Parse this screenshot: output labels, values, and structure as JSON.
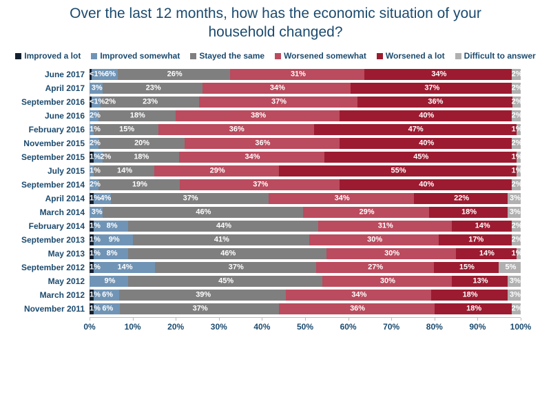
{
  "chart_data": {
    "type": "bar",
    "orientation": "horizontal-stacked",
    "title": "Over the last 12 months, how has the economic situation of your household changed?",
    "legend_position": "top",
    "grid": false,
    "x_axis": {
      "min": 0,
      "max": 100,
      "ticks": [
        "0%",
        "10%",
        "20%",
        "30%",
        "40%",
        "50%",
        "60%",
        "70%",
        "80%",
        "90%",
        "100%"
      ]
    },
    "series_meta": [
      {
        "key": "improved_a_lot",
        "label": "Improved a lot",
        "color": "#13202f"
      },
      {
        "key": "improved_somewhat",
        "label": "Improved somewhat",
        "color": "#7094b5"
      },
      {
        "key": "stayed_the_same",
        "label": "Stayed the same",
        "color": "#7f7f7f"
      },
      {
        "key": "worsened_somewhat",
        "label": "Worsened somewhat",
        "color": "#bb4b5e"
      },
      {
        "key": "worsened_a_lot",
        "label": "Worsened a lot",
        "color": "#9c1b30"
      },
      {
        "key": "difficult_to_answer",
        "label": "Difficult to answer",
        "color": "#b0b0b0"
      }
    ],
    "rows": [
      {
        "category": "June 2017",
        "segments": [
          {
            "series": "improved_a_lot",
            "value": 0.5,
            "label": "<1%"
          },
          {
            "series": "improved_somewhat",
            "value": 6,
            "label": "6%"
          },
          {
            "series": "stayed_the_same",
            "value": 26,
            "label": "26%"
          },
          {
            "series": "worsened_somewhat",
            "value": 31,
            "label": "31%"
          },
          {
            "series": "worsened_a_lot",
            "value": 34,
            "label": "34%"
          },
          {
            "series": "difficult_to_answer",
            "value": 2,
            "label": "2%"
          }
        ]
      },
      {
        "category": "April 2017",
        "segments": [
          {
            "series": "improved_somewhat",
            "value": 3,
            "label": "3%"
          },
          {
            "series": "stayed_the_same",
            "value": 23,
            "label": "23%"
          },
          {
            "series": "worsened_somewhat",
            "value": 34,
            "label": "34%"
          },
          {
            "series": "worsened_a_lot",
            "value": 37,
            "label": "37%"
          },
          {
            "series": "difficult_to_answer",
            "value": 2,
            "label": "2%"
          }
        ]
      },
      {
        "category": "September 2016",
        "segments": [
          {
            "series": "improved_a_lot",
            "value": 0.5,
            "label": "<1%"
          },
          {
            "series": "improved_somewhat",
            "value": 2,
            "label": "2%"
          },
          {
            "series": "stayed_the_same",
            "value": 23,
            "label": "23%"
          },
          {
            "series": "worsened_somewhat",
            "value": 37,
            "label": "37%"
          },
          {
            "series": "worsened_a_lot",
            "value": 36,
            "label": "36%"
          },
          {
            "series": "difficult_to_answer",
            "value": 2,
            "label": "2%"
          }
        ]
      },
      {
        "category": "June 2016",
        "segments": [
          {
            "series": "improved_somewhat",
            "value": 2,
            "label": "2%"
          },
          {
            "series": "stayed_the_same",
            "value": 18,
            "label": "18%"
          },
          {
            "series": "worsened_somewhat",
            "value": 38,
            "label": "38%"
          },
          {
            "series": "worsened_a_lot",
            "value": 40,
            "label": "40%"
          },
          {
            "series": "difficult_to_answer",
            "value": 2,
            "label": "2%"
          }
        ]
      },
      {
        "category": "February 2016",
        "segments": [
          {
            "series": "improved_somewhat",
            "value": 1,
            "label": "1%"
          },
          {
            "series": "stayed_the_same",
            "value": 15,
            "label": "15%"
          },
          {
            "series": "worsened_somewhat",
            "value": 36,
            "label": "36%"
          },
          {
            "series": "worsened_a_lot",
            "value": 47,
            "label": "47%"
          },
          {
            "series": "difficult_to_answer",
            "value": 1,
            "label": "1%"
          }
        ]
      },
      {
        "category": "November 2015",
        "segments": [
          {
            "series": "improved_somewhat",
            "value": 2,
            "label": "2%"
          },
          {
            "series": "stayed_the_same",
            "value": 20,
            "label": "20%"
          },
          {
            "series": "worsened_somewhat",
            "value": 36,
            "label": "36%"
          },
          {
            "series": "worsened_a_lot",
            "value": 40,
            "label": "40%"
          },
          {
            "series": "difficult_to_answer",
            "value": 2,
            "label": "2%"
          }
        ]
      },
      {
        "category": "September 2015",
        "segments": [
          {
            "series": "improved_a_lot",
            "value": 1,
            "label": "1%"
          },
          {
            "series": "improved_somewhat",
            "value": 2,
            "label": "2%"
          },
          {
            "series": "stayed_the_same",
            "value": 18,
            "label": "18%"
          },
          {
            "series": "worsened_somewhat",
            "value": 34,
            "label": "34%"
          },
          {
            "series": "worsened_a_lot",
            "value": 45,
            "label": "45%"
          },
          {
            "series": "difficult_to_answer",
            "value": 1,
            "label": "1%"
          }
        ]
      },
      {
        "category": "July 2015",
        "segments": [
          {
            "series": "improved_somewhat",
            "value": 1,
            "label": "1%"
          },
          {
            "series": "stayed_the_same",
            "value": 14,
            "label": "14%"
          },
          {
            "series": "worsened_somewhat",
            "value": 29,
            "label": "29%"
          },
          {
            "series": "worsened_a_lot",
            "value": 55,
            "label": "55%"
          },
          {
            "series": "difficult_to_answer",
            "value": 1,
            "label": "1%"
          }
        ]
      },
      {
        "category": "September 2014",
        "segments": [
          {
            "series": "improved_somewhat",
            "value": 2,
            "label": "2%"
          },
          {
            "series": "stayed_the_same",
            "value": 19,
            "label": "19%"
          },
          {
            "series": "worsened_somewhat",
            "value": 37,
            "label": "37%"
          },
          {
            "series": "worsened_a_lot",
            "value": 40,
            "label": "40%"
          },
          {
            "series": "difficult_to_answer",
            "value": 2,
            "label": "2%"
          }
        ]
      },
      {
        "category": "April 2014",
        "segments": [
          {
            "series": "improved_a_lot",
            "value": 1,
            "label": "1%"
          },
          {
            "series": "improved_somewhat",
            "value": 4,
            "label": "4%"
          },
          {
            "series": "stayed_the_same",
            "value": 37,
            "label": "37%"
          },
          {
            "series": "worsened_somewhat",
            "value": 34,
            "label": "34%"
          },
          {
            "series": "worsened_a_lot",
            "value": 22,
            "label": "22%"
          },
          {
            "series": "difficult_to_answer",
            "value": 3,
            "label": "3%"
          }
        ]
      },
      {
        "category": "March 2014",
        "segments": [
          {
            "series": "improved_somewhat",
            "value": 3,
            "label": "3%"
          },
          {
            "series": "stayed_the_same",
            "value": 46,
            "label": "46%"
          },
          {
            "series": "worsened_somewhat",
            "value": 29,
            "label": "29%"
          },
          {
            "series": "worsened_a_lot",
            "value": 18,
            "label": "18%"
          },
          {
            "series": "difficult_to_answer",
            "value": 3,
            "label": "3%"
          }
        ]
      },
      {
        "category": "February 2014",
        "segments": [
          {
            "series": "improved_a_lot",
            "value": 1,
            "label": "1%"
          },
          {
            "series": "improved_somewhat",
            "value": 8,
            "label": "8%"
          },
          {
            "series": "stayed_the_same",
            "value": 44,
            "label": "44%"
          },
          {
            "series": "worsened_somewhat",
            "value": 31,
            "label": "31%"
          },
          {
            "series": "worsened_a_lot",
            "value": 14,
            "label": "14%"
          },
          {
            "series": "difficult_to_answer",
            "value": 2,
            "label": "2%"
          }
        ]
      },
      {
        "category": "September 2013",
        "segments": [
          {
            "series": "improved_a_lot",
            "value": 1,
            "label": "1%"
          },
          {
            "series": "improved_somewhat",
            "value": 9,
            "label": "9%"
          },
          {
            "series": "stayed_the_same",
            "value": 41,
            "label": "41%"
          },
          {
            "series": "worsened_somewhat",
            "value": 30,
            "label": "30%"
          },
          {
            "series": "worsened_a_lot",
            "value": 17,
            "label": "17%"
          },
          {
            "series": "difficult_to_answer",
            "value": 2,
            "label": "2%"
          }
        ]
      },
      {
        "category": "May 2013",
        "segments": [
          {
            "series": "improved_a_lot",
            "value": 1,
            "label": "1%"
          },
          {
            "series": "improved_somewhat",
            "value": 8,
            "label": "8%"
          },
          {
            "series": "stayed_the_same",
            "value": 46,
            "label": "46%"
          },
          {
            "series": "worsened_somewhat",
            "value": 30,
            "label": "30%"
          },
          {
            "series": "worsened_a_lot",
            "value": 14,
            "label": "14%"
          },
          {
            "series": "difficult_to_answer",
            "value": 1,
            "label": "1%"
          }
        ]
      },
      {
        "category": "September 2012",
        "segments": [
          {
            "series": "improved_a_lot",
            "value": 1,
            "label": "1%"
          },
          {
            "series": "improved_somewhat",
            "value": 14,
            "label": "14%"
          },
          {
            "series": "stayed_the_same",
            "value": 37,
            "label": "37%"
          },
          {
            "series": "worsened_somewhat",
            "value": 27,
            "label": "27%"
          },
          {
            "series": "worsened_a_lot",
            "value": 15,
            "label": "15%"
          },
          {
            "series": "difficult_to_answer",
            "value": 5,
            "label": "5%"
          }
        ]
      },
      {
        "category": "May 2012",
        "segments": [
          {
            "series": "improved_somewhat",
            "value": 9,
            "label": "9%"
          },
          {
            "series": "stayed_the_same",
            "value": 45,
            "label": "45%"
          },
          {
            "series": "worsened_somewhat",
            "value": 30,
            "label": "30%"
          },
          {
            "series": "worsened_a_lot",
            "value": 13,
            "label": "13%"
          },
          {
            "series": "difficult_to_answer",
            "value": 3,
            "label": "3%"
          }
        ]
      },
      {
        "category": "March 2012",
        "segments": [
          {
            "series": "improved_a_lot",
            "value": 1,
            "label": "1%"
          },
          {
            "series": "improved_somewhat",
            "value": 6,
            "label": "6%"
          },
          {
            "series": "stayed_the_same",
            "value": 39,
            "label": "39%"
          },
          {
            "series": "worsened_somewhat",
            "value": 34,
            "label": "34%"
          },
          {
            "series": "worsened_a_lot",
            "value": 18,
            "label": "18%"
          },
          {
            "series": "difficult_to_answer",
            "value": 3,
            "label": "3%"
          }
        ]
      },
      {
        "category": "November 2011",
        "segments": [
          {
            "series": "improved_a_lot",
            "value": 1,
            "label": "1%"
          },
          {
            "series": "improved_somewhat",
            "value": 6,
            "label": "6%"
          },
          {
            "series": "stayed_the_same",
            "value": 37,
            "label": "37%"
          },
          {
            "series": "worsened_somewhat",
            "value": 36,
            "label": "36%"
          },
          {
            "series": "worsened_a_lot",
            "value": 18,
            "label": "18%"
          },
          {
            "series": "difficult_to_answer",
            "value": 2,
            "label": "2%"
          }
        ]
      }
    ]
  }
}
